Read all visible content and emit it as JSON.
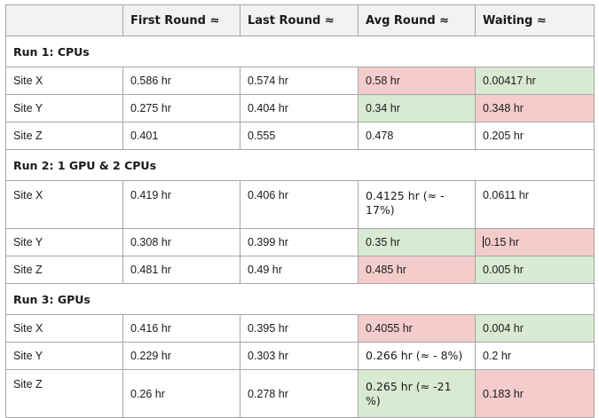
{
  "table": {
    "headers": [
      "",
      "First Round ≈",
      "Last Round ≈",
      "Avg Round ≈",
      "Waiting ≈"
    ],
    "runs": [
      {
        "label": "Run 1: CPUs",
        "rows": [
          {
            "site": "Site X",
            "first": "0.586 hr",
            "last": "0.574 hr",
            "avg": "0.58 hr",
            "waiting": "0.00417 hr"
          },
          {
            "site": "Site Y",
            "first": "0.275 hr",
            "last": "0.404 hr",
            "avg": "0.34 hr",
            "waiting": "0.348 hr"
          },
          {
            "site": "Site Z",
            "first": "0.401",
            "last": "0.555",
            "avg": "0.478",
            "waiting": "0.205 hr"
          }
        ]
      },
      {
        "label": "Run 2: 1 GPU & 2 CPUs",
        "rows": [
          {
            "site": "Site X",
            "first": "0.419 hr",
            "last": "0.406 hr",
            "avg": "0.4125 hr (≈ - 17%)",
            "waiting": "0.0611 hr"
          },
          {
            "site": "Site Y",
            "first": "0.308 hr",
            "last": "0.399 hr",
            "avg": "0.35 hr",
            "waiting": "0.15 hr"
          },
          {
            "site": "Site Z",
            "first": "0.481 hr",
            "last": "0.49 hr",
            "avg": "0.485 hr",
            "waiting": "0.005 hr"
          }
        ]
      },
      {
        "label": "Run 3: GPUs",
        "rows": [
          {
            "site": "Site X",
            "first": "0.416 hr",
            "last": "0.395 hr",
            "avg": "0.4055 hr",
            "waiting": "0.004 hr"
          },
          {
            "site": "Site Y",
            "first": "0.229 hr",
            "last": "0.303 hr",
            "avg": "0.266 hr (≈ - 8%)",
            "waiting": "0.2 hr"
          },
          {
            "site": "Site Z",
            "first": "0.26 hr",
            "last": "0.278 hr",
            "avg": "0.265 hr (≈ -21 %)",
            "waiting": "0.183 hr"
          }
        ]
      }
    ]
  },
  "colors": {
    "highlight_red": "#f4cccc",
    "highlight_green": "#d9ead3",
    "header_bg": "#f2f2f2",
    "border": "#a6a6a6"
  }
}
